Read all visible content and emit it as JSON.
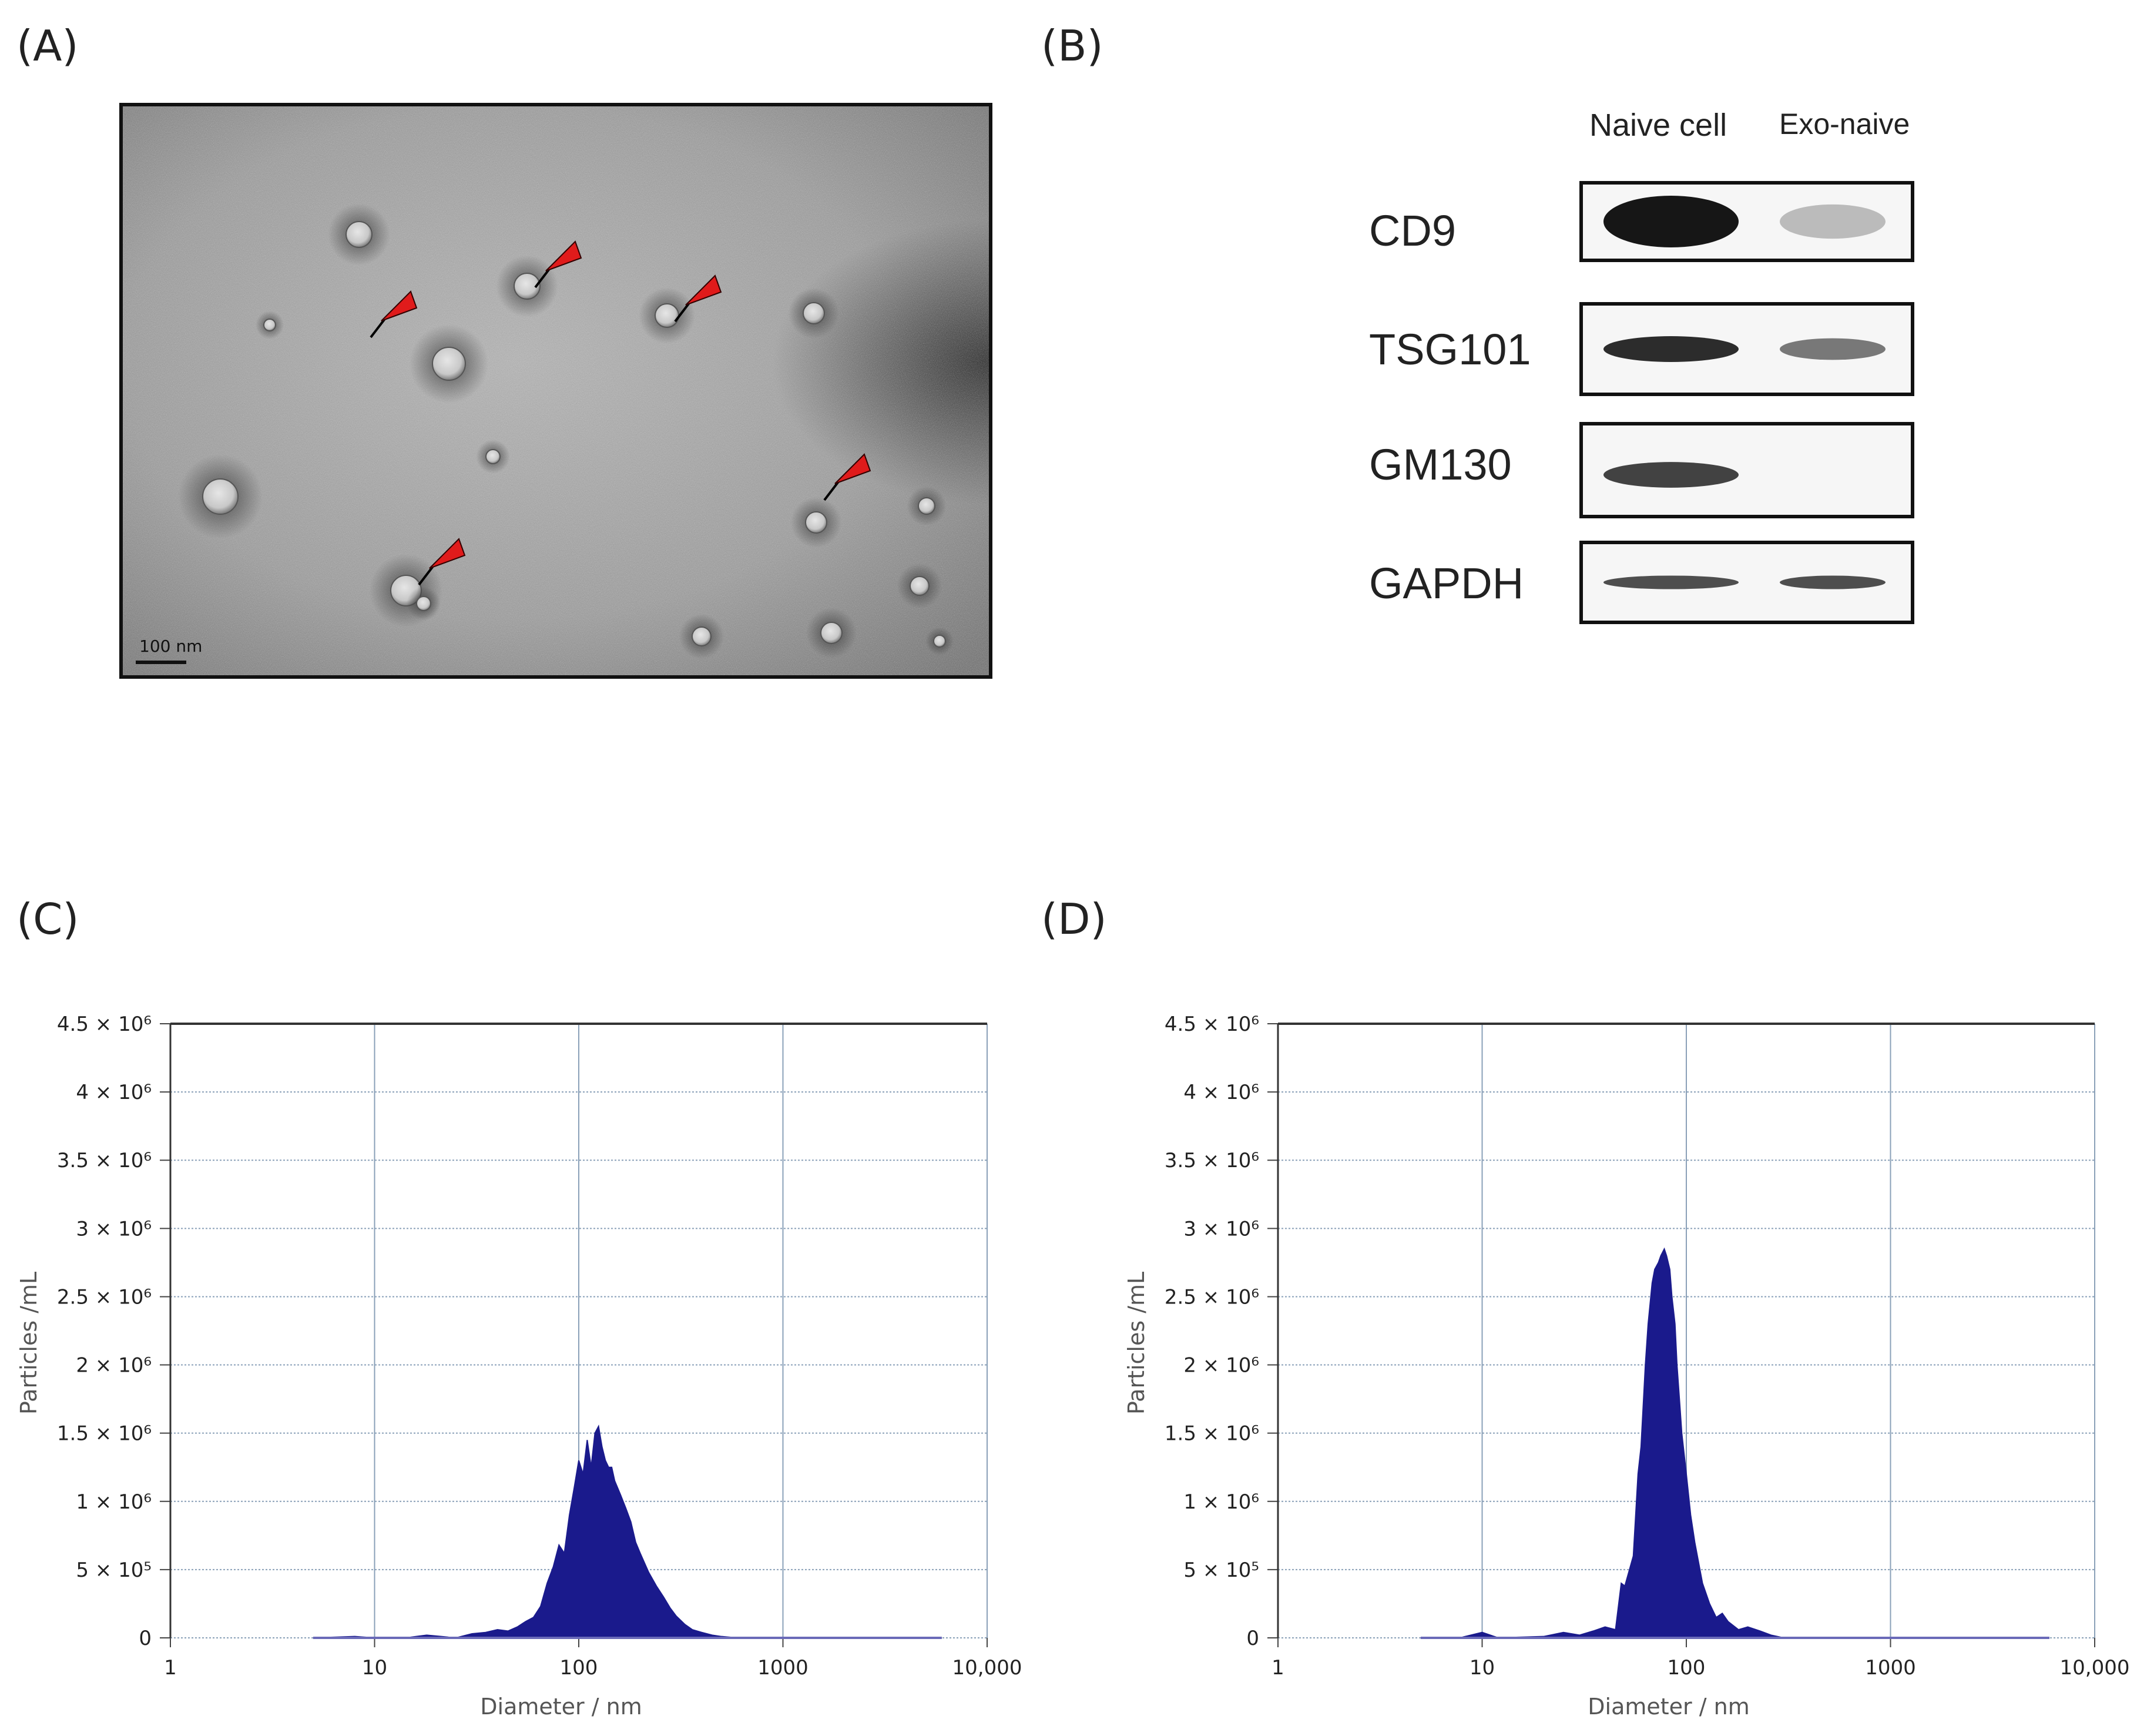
{
  "panels": {
    "a": "(A)",
    "b": "(B)",
    "c": "(C)",
    "d": "(D)"
  },
  "tem": {
    "scale_bar_label": "100 nm",
    "arrow_color": "#e01b1b"
  },
  "blot": {
    "columns": [
      "Naive cell",
      "Exo-naive"
    ],
    "rows": [
      {
        "protein": "CD9",
        "naive_intensity": 1.0,
        "exo_intensity": 0.25
      },
      {
        "protein": "TSG101",
        "naive_intensity": 0.9,
        "exo_intensity": 0.55
      },
      {
        "protein": "GM130",
        "naive_intensity": 0.8,
        "exo_intensity": 0.0
      },
      {
        "protein": "GAPDH",
        "naive_intensity": 0.75,
        "exo_intensity": 0.75
      }
    ]
  },
  "chart_data": [
    {
      "panel": "(C)",
      "type": "area",
      "xlabel": "Diameter / nm",
      "ylabel": "Particles /mL",
      "xscale": "log",
      "xlim": [
        1,
        10000
      ],
      "ylim": [
        0,
        4500000
      ],
      "xticks": [
        "1",
        "10",
        "100",
        "1000",
        "10,000"
      ],
      "yticks": [
        "0",
        "5 × 10⁵",
        "1 × 10⁶",
        "1.5 × 10⁶",
        "2 × 10⁶",
        "2.5 × 10⁶",
        "3 × 10⁶",
        "3.5 × 10⁶",
        "4 × 10⁶",
        "4.5 × 10⁶"
      ],
      "grid": true,
      "color": "#1a1a8c",
      "series": [
        {
          "x": [
            5,
            8,
            10,
            15,
            18,
            25,
            30,
            35,
            40,
            45,
            50,
            55,
            60,
            65,
            70,
            75,
            80,
            85,
            90,
            95,
            100,
            105,
            110,
            115,
            120,
            125,
            130,
            135,
            140,
            145,
            150,
            160,
            170,
            180,
            190,
            200,
            220,
            240,
            260,
            280,
            300,
            330,
            360,
            400,
            450,
            500,
            600,
            1000,
            6000
          ],
          "y": [
            0,
            10000,
            0,
            5000,
            20000,
            0,
            30000,
            40000,
            60000,
            50000,
            80000,
            120000,
            150000,
            230000,
            400000,
            520000,
            680000,
            620000,
            900000,
            1100000,
            1300000,
            1200000,
            1450000,
            1250000,
            1500000,
            1550000,
            1400000,
            1300000,
            1250000,
            1250000,
            1150000,
            1050000,
            950000,
            850000,
            700000,
            620000,
            480000,
            380000,
            300000,
            220000,
            160000,
            100000,
            60000,
            40000,
            20000,
            10000,
            0,
            0,
            0
          ]
        }
      ]
    },
    {
      "panel": "(D)",
      "type": "area",
      "xlabel": "Diameter / nm",
      "ylabel": "Particles /mL",
      "xscale": "log",
      "xlim": [
        1,
        10000
      ],
      "ylim": [
        0,
        4500000
      ],
      "xticks": [
        "1",
        "10",
        "100",
        "1000",
        "10,000"
      ],
      "yticks": [
        "0",
        "5 × 10⁵",
        "1 × 10⁶",
        "1.5 × 10⁶",
        "2 × 10⁶",
        "2.5 × 10⁶",
        "3 × 10⁶",
        "3.5 × 10⁶",
        "4 × 10⁶",
        "4.5 × 10⁶"
      ],
      "grid": true,
      "color": "#1a1a8c",
      "series": [
        {
          "x": [
            5,
            8,
            10,
            12,
            15,
            20,
            25,
            30,
            35,
            40,
            45,
            48,
            50,
            55,
            58,
            60,
            63,
            65,
            68,
            70,
            73,
            75,
            78,
            80,
            83,
            85,
            88,
            90,
            93,
            95,
            100,
            105,
            110,
            120,
            130,
            140,
            150,
            160,
            180,
            200,
            230,
            260,
            300,
            1000,
            6000
          ],
          "y": [
            0,
            5000,
            40000,
            0,
            5000,
            10000,
            40000,
            20000,
            50000,
            80000,
            60000,
            400000,
            380000,
            600000,
            1200000,
            1400000,
            2000000,
            2300000,
            2600000,
            2700000,
            2750000,
            2800000,
            2850000,
            2800000,
            2700000,
            2500000,
            2300000,
            2000000,
            1700000,
            1500000,
            1200000,
            900000,
            700000,
            400000,
            250000,
            150000,
            180000,
            120000,
            60000,
            80000,
            50000,
            20000,
            0,
            0,
            0
          ]
        }
      ]
    }
  ]
}
